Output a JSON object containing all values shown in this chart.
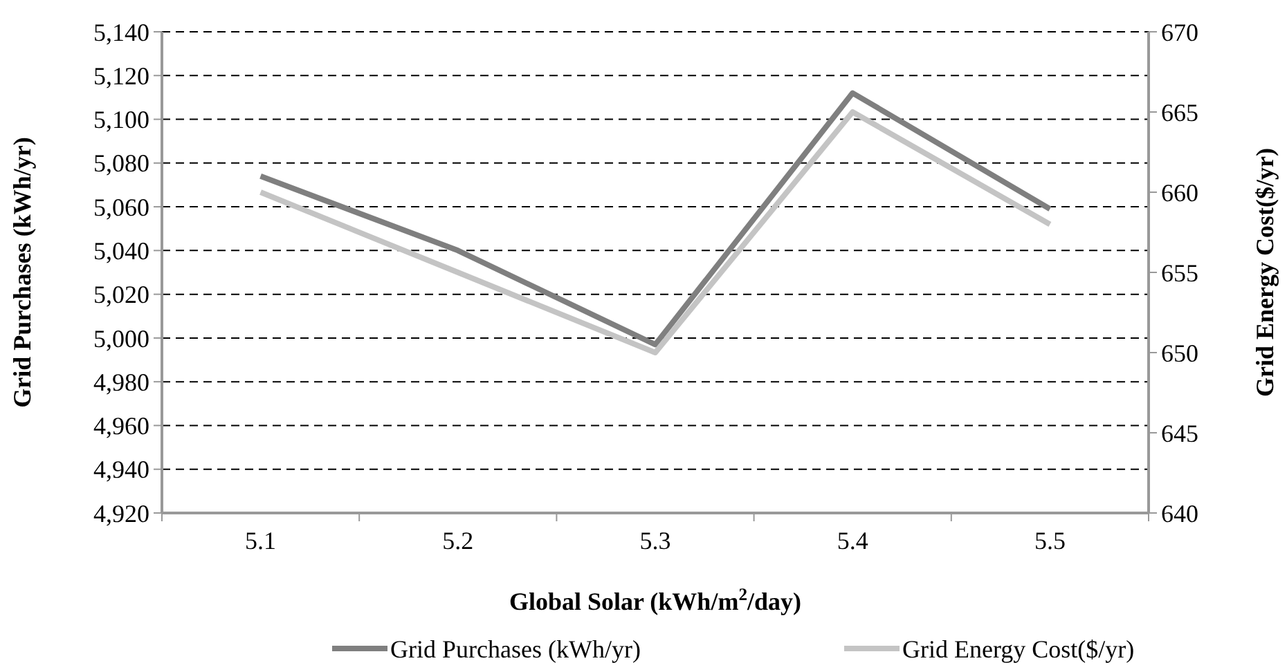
{
  "chart_data": {
    "type": "line",
    "xlabel": "Global Solar (kWh/m$^{2}$/day)",
    "ylabel": "Grid Purchases (kWh/yr)",
    "y2label": "Grid Energy Cost($/yr)",
    "categories": [
      "5.1",
      "5.2",
      "5.3",
      "5.4",
      "5.5"
    ],
    "series": [
      {
        "name": "Grid Purchases (kWh/yr)",
        "color": "#7f7f7f",
        "values": [
          5074,
          5040,
          4997,
          5112,
          5059
        ]
      },
      {
        "name": "Grid Energy Cost($/yr)",
        "color": "#c4c4c4",
        "axis": "y2",
        "values": [
          660,
          655,
          650,
          665,
          658
        ]
      }
    ],
    "ylim": [
      4920,
      5140
    ],
    "yticks": [
      {
        "value": 4920,
        "label": "4,920"
      },
      {
        "value": 4940,
        "label": "4,940"
      },
      {
        "value": 4960,
        "label": "4,960"
      },
      {
        "value": 4980,
        "label": "4,980"
      },
      {
        "value": 5000,
        "label": "5,000"
      },
      {
        "value": 5020,
        "label": "5,020"
      },
      {
        "value": 5040,
        "label": "5,040"
      },
      {
        "value": 5060,
        "label": "5,060"
      },
      {
        "value": 5080,
        "label": "5,080"
      },
      {
        "value": 5100,
        "label": "5,100"
      },
      {
        "value": 5120,
        "label": "5,120"
      },
      {
        "value": 5140,
        "label": "5,140"
      }
    ],
    "y2lim": [
      640,
      670
    ],
    "y2ticks": [
      640,
      645,
      650,
      655,
      660,
      665,
      670
    ],
    "grid": "y",
    "legend": "bottom",
    "marker": "none",
    "line_style": "solid"
  }
}
